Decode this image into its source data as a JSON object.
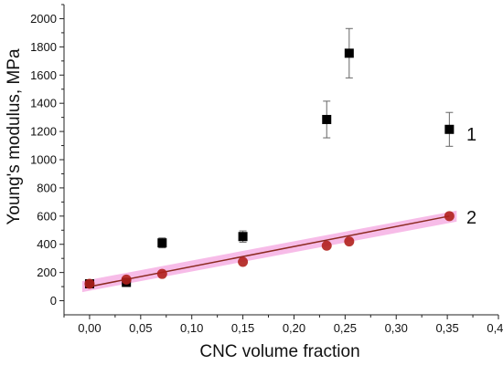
{
  "chart_data": {
    "type": "scatter",
    "xlabel": "CNC volume fraction",
    "ylabel": "Young's modulus, MPa",
    "xlim": [
      -0.025,
      0.4
    ],
    "ylim": [
      -100,
      2100
    ],
    "x_ticks": [
      "0,00",
      "0,05",
      "0,10",
      "0,15",
      "0,20",
      "0,25",
      "0,30",
      "0,35",
      "0,40"
    ],
    "x_tick_values": [
      0,
      0.05,
      0.1,
      0.15,
      0.2,
      0.25,
      0.3,
      0.35,
      0.4
    ],
    "y_ticks": [
      "0",
      "200",
      "400",
      "600",
      "800",
      "1000",
      "1200",
      "1400",
      "1600",
      "1800",
      "2000"
    ],
    "y_tick_values": [
      0,
      200,
      400,
      600,
      800,
      1000,
      1200,
      1400,
      1600,
      1800,
      2000
    ],
    "grid": false,
    "series": [
      {
        "name": "1",
        "marker": "square",
        "color": "#000000",
        "x": [
          0.0,
          0.036,
          0.071,
          0.15,
          0.232,
          0.254,
          0.352
        ],
        "y": [
          120,
          130,
          410,
          455,
          1285,
          1755,
          1215
        ],
        "error": [
          10,
          10,
          35,
          40,
          130,
          175,
          120
        ]
      },
      {
        "name": "2",
        "marker": "circle",
        "color": "#b0201c",
        "band_color": "#f4a6e0",
        "x": [
          0.0,
          0.036,
          0.071,
          0.15,
          0.232,
          0.254,
          0.352
        ],
        "y": [
          120,
          150,
          190,
          275,
          390,
          420,
          600
        ]
      }
    ],
    "fit_line": {
      "series": "2",
      "color": "#8b2a20",
      "x": [
        0.0,
        0.352
      ],
      "y": [
        100,
        600
      ]
    }
  }
}
